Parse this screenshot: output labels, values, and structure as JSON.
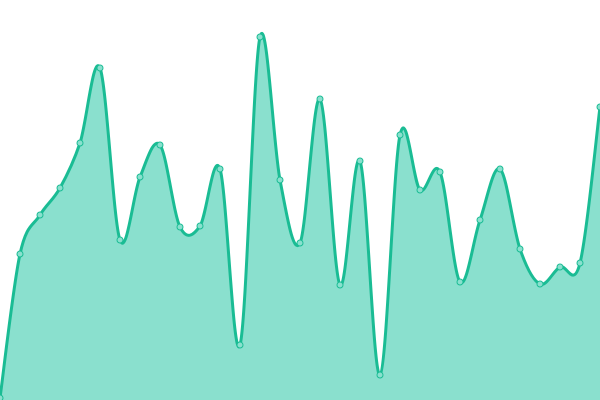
{
  "chart_data": {
    "type": "area",
    "x": [
      0,
      1,
      2,
      3,
      4,
      5,
      6,
      7,
      8,
      9,
      10,
      11,
      12,
      13,
      14,
      15,
      16,
      17,
      18,
      19,
      20,
      21,
      22,
      23,
      24,
      25,
      26,
      27,
      28,
      29,
      30
    ],
    "values": [
      2,
      146,
      185,
      212,
      257,
      332,
      160,
      223,
      255,
      173,
      174,
      231,
      55,
      363,
      220,
      157,
      301,
      115,
      239,
      25,
      265,
      210,
      228,
      118,
      180,
      231,
      151,
      116,
      133,
      137,
      293
    ],
    "ylim": [
      0,
      400
    ],
    "grid": false,
    "smooth": true,
    "colors": {
      "fill": "#8ae0ce",
      "line": "#1abc94",
      "marker": "#8ae0ce"
    }
  }
}
